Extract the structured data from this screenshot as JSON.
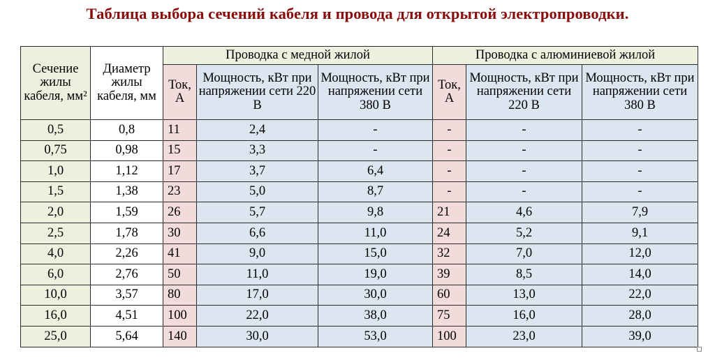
{
  "title": "Таблица выбора сечений кабеля и провода для открытой электропроводки.",
  "headers": {
    "section": "Сечение жилы кабеля, мм²",
    "diameter": "Диаметр жилы кабеля, мм",
    "copper_group": "Проводка с медной жилой",
    "aluminum_group": "Проводка с алюминиевой жилой",
    "current": "Ток, А",
    "power_220": "Мощность, кВт при напряжении сети 220 В",
    "power_380": "Мощность, кВт при напряжении сети 380 В"
  },
  "rows": [
    [
      "0,5",
      "0,8",
      "11",
      "2,4",
      "-",
      "-",
      "-",
      "-"
    ],
    [
      "0,75",
      "0,98",
      "15",
      "3,3",
      "-",
      "-",
      "-",
      "-"
    ],
    [
      "1,0",
      "1,12",
      "17",
      "3,7",
      "6,4",
      "-",
      "-",
      "-"
    ],
    [
      "1,5",
      "1,38",
      "23",
      "5,0",
      "8,7",
      "-",
      "-",
      "-"
    ],
    [
      "2,0",
      "1,59",
      "26",
      "5,7",
      "9,8",
      "21",
      "4,6",
      "7,9"
    ],
    [
      "2,5",
      "1,78",
      "30",
      "6,6",
      "11,0",
      "24",
      "5,2",
      "9,1"
    ],
    [
      "4,0",
      "2,26",
      "41",
      "9,0",
      "15,0",
      "32",
      "7,0",
      "12,0"
    ],
    [
      "6,0",
      "2,76",
      "50",
      "11,0",
      "19,0",
      "39",
      "8,5",
      "14,0"
    ],
    [
      "10,0",
      "3,57",
      "80",
      "17,0",
      "30,0",
      "60",
      "13,0",
      "22,0"
    ],
    [
      "16,0",
      "4,51",
      "100",
      "22,0",
      "38,0",
      "75",
      "16,0",
      "28,0"
    ],
    [
      "25,0",
      "5,64",
      "140",
      "30,0",
      "53,0",
      "100",
      "23,0",
      "39,0"
    ]
  ],
  "colors": {
    "title": "#8b0a0a",
    "green": "#ebf1de",
    "pink": "#f2dcdb",
    "blue": "#dce6f1"
  }
}
